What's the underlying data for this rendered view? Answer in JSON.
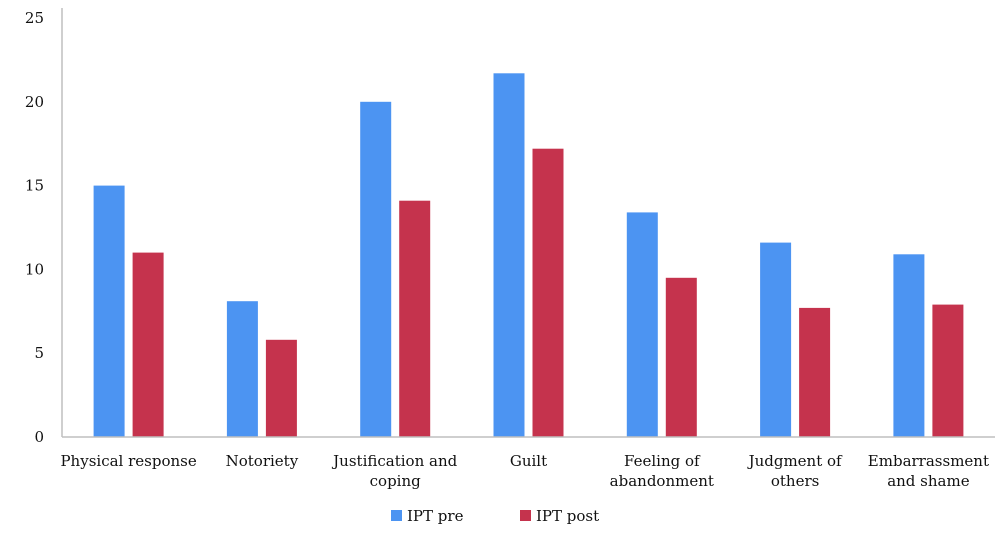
{
  "chart_data": {
    "type": "bar",
    "categories": [
      [
        "Physical response"
      ],
      [
        "Notoriety"
      ],
      [
        "Justification and",
        "coping"
      ],
      [
        "Guilt"
      ],
      [
        "Feeling of",
        "abandonment"
      ],
      [
        "Judgment of",
        "others"
      ],
      [
        "Embarrassment",
        "and shame"
      ]
    ],
    "series": [
      {
        "name": "IPT pre",
        "color": "#4c94f2",
        "values": [
          15.0,
          8.1,
          20.0,
          21.7,
          13.4,
          11.6,
          10.9
        ]
      },
      {
        "name": "IPT post",
        "color": "#c5334d",
        "values": [
          11.0,
          5.8,
          14.1,
          17.2,
          9.5,
          7.7,
          7.9
        ]
      }
    ],
    "ylim": [
      0,
      25
    ],
    "yticks": [
      0,
      5,
      10,
      15,
      20,
      25
    ],
    "title": "",
    "xlabel": "",
    "ylabel": "",
    "legend_position": "bottom-center",
    "grid": false
  }
}
